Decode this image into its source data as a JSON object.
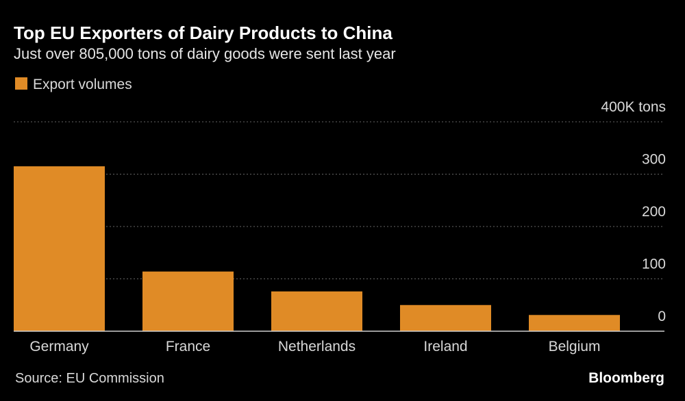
{
  "chart_data": {
    "type": "bar",
    "title": "Top EU Exporters of Dairy Products to China",
    "subtitle": "Just over 805,000 tons of dairy goods were sent last year",
    "categories": [
      "Germany",
      "France",
      "Netherlands",
      "Ireland",
      "Belgium"
    ],
    "series": [
      {
        "name": "Export volumes",
        "color": "#e08b26",
        "values": [
          315,
          114,
          76,
          50,
          31
        ]
      }
    ],
    "ylim": [
      0,
      400
    ],
    "yticks": [
      0,
      100,
      200,
      300,
      {
        "value": 400,
        "label": "400K tons"
      }
    ],
    "grid": true,
    "legend": "top-left",
    "source": "Source: EU Commission",
    "brand": "Bloomberg"
  }
}
